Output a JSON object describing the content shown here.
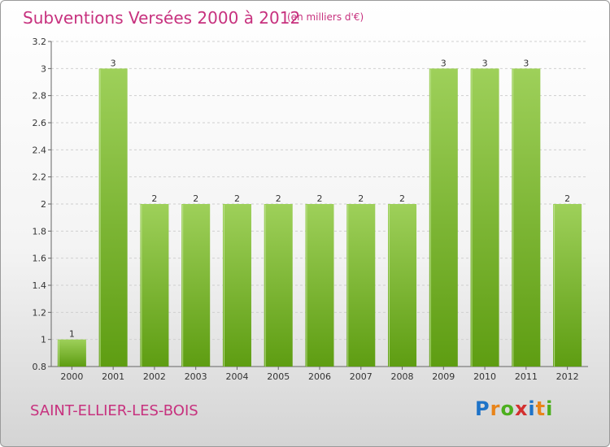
{
  "header": {
    "title": "Subventions Versées 2000 à 2012",
    "subtitle": "(en milliers d'€)"
  },
  "footer": {
    "commune": "SAINT-ELLIER-LES-BOIS",
    "logo_letters": [
      "P",
      "r",
      "o",
      "x",
      "i",
      "t",
      "i"
    ],
    "logo_colors": [
      "#1e73c8",
      "#e8841a",
      "#4caf1e",
      "#d32f2f",
      "#1e73c8",
      "#e8841a",
      "#4caf1e"
    ]
  },
  "chart_data": {
    "type": "bar",
    "title": "Subventions Versées 2000 à 2012",
    "subtitle": "(en milliers d'€)",
    "xlabel": "",
    "ylabel": "",
    "categories": [
      "2000",
      "2001",
      "2002",
      "2003",
      "2004",
      "2005",
      "2006",
      "2007",
      "2008",
      "2009",
      "2010",
      "2011",
      "2012"
    ],
    "values": [
      1,
      3,
      2,
      2,
      2,
      2,
      2,
      2,
      2,
      3,
      3,
      3,
      2
    ],
    "data_labels": [
      "1",
      "3",
      "2",
      "2",
      "2",
      "2",
      "2",
      "2",
      "2",
      "3",
      "3",
      "3",
      "2"
    ],
    "ylim": [
      0.8,
      3.2
    ],
    "yticks": [
      0.8,
      1,
      1.2,
      1.4,
      1.6,
      1.8,
      2,
      2.2,
      2.4,
      2.6,
      2.8,
      3,
      3.2
    ],
    "ytick_labels": [
      "0.8",
      "1",
      "1.2",
      "1.4",
      "1.6",
      "1.8",
      "2",
      "2.2",
      "2.4",
      "2.6",
      "2.8",
      "3",
      "3.2"
    ],
    "grid": true,
    "bar_color_top": "#9ed05a",
    "bar_color_bottom": "#5e9d12"
  }
}
